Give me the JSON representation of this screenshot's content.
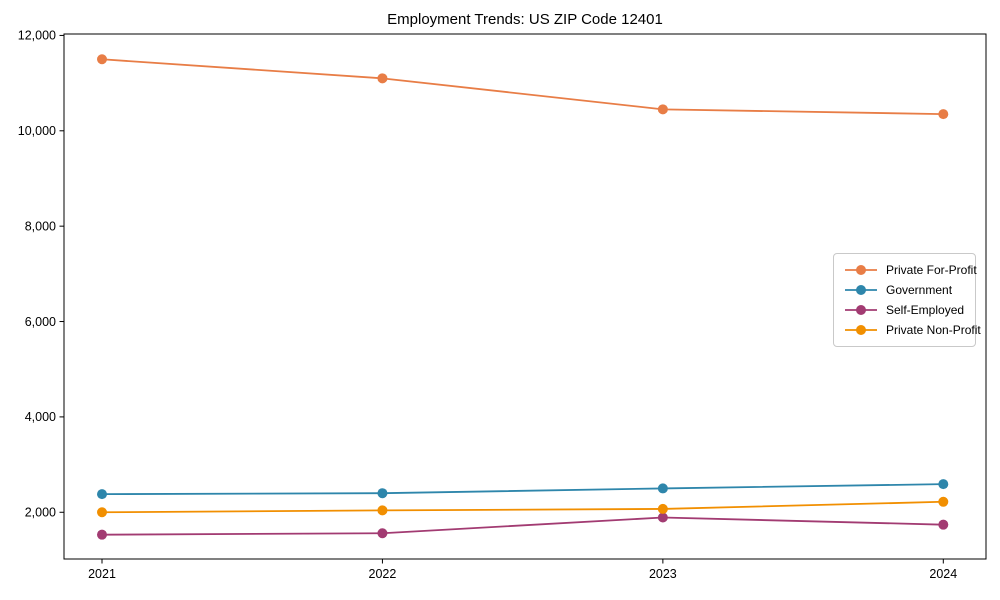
{
  "chart_data": {
    "type": "line",
    "title": "Employment Trends: US ZIP Code 12401",
    "categories": [
      "2021",
      "2022",
      "2023",
      "2024"
    ],
    "series": [
      {
        "name": "Private For-Profit",
        "color": "#E87D46",
        "values": [
          11500,
          11100,
          10450,
          10350
        ]
      },
      {
        "name": "Government",
        "color": "#2E86AB",
        "values": [
          2380,
          2400,
          2500,
          2590
        ]
      },
      {
        "name": "Self-Employed",
        "color": "#A23B72",
        "values": [
          1530,
          1560,
          1890,
          1740
        ]
      },
      {
        "name": "Private Non-Profit",
        "color": "#F18F01",
        "values": [
          2000,
          2040,
          2070,
          2220
        ]
      }
    ],
    "xlabel": "",
    "ylabel": "",
    "ylim": [
      1020,
      12030
    ],
    "yticks": [
      2000,
      4000,
      6000,
      8000,
      10000,
      12000
    ],
    "ytick_label_format": "thousands-comma",
    "grid": false,
    "legend_position": "center-right",
    "marker": "circle",
    "background": "#ffffff"
  },
  "colors": {
    "spine": "#000000",
    "tick_text": "#000000",
    "title_text": "#000000",
    "legend_border": "#c9c9c9",
    "background": "#ffffff"
  }
}
